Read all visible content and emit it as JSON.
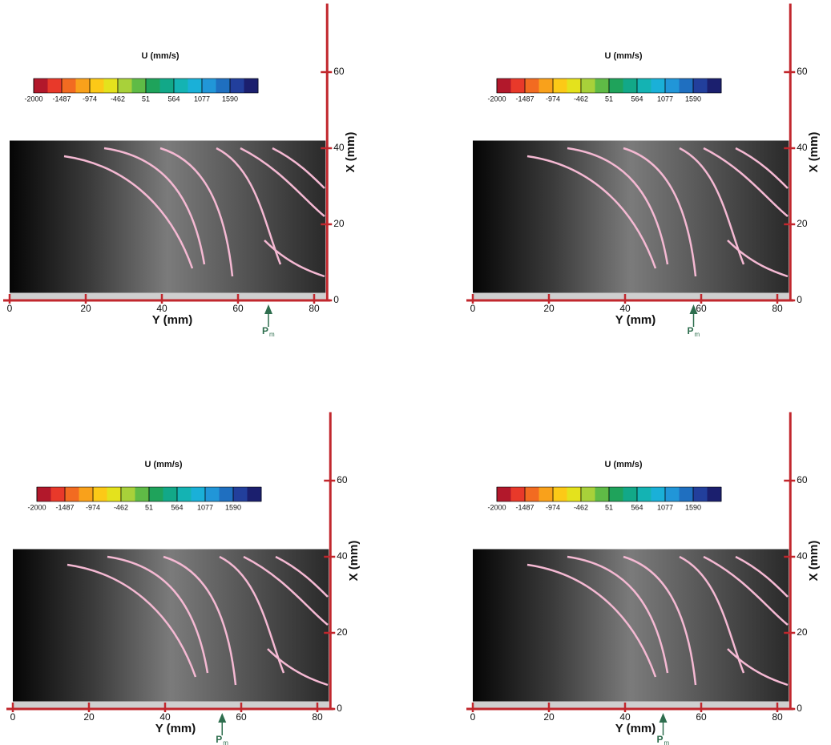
{
  "chart_data": [
    {
      "type": "field",
      "colorbar_title": "U (mm/s)",
      "colorbar_ticks": [
        -2000,
        -1487,
        -974,
        -462,
        51,
        564,
        1077,
        1590
      ],
      "clim": [
        -2000,
        2103
      ],
      "colormap": [
        "#b2182b",
        "#e8392a",
        "#f26b21",
        "#f9a11b",
        "#fcc917",
        "#e4e21d",
        "#a8d13a",
        "#5fbb46",
        "#1fa35b",
        "#12a888",
        "#14b3b3",
        "#1ab0d8",
        "#2196d8",
        "#1f6fc0",
        "#223f9c",
        "#1b1f6e"
      ],
      "xlabel": "Y (mm)",
      "ylabel": "X (mm)",
      "xlim": [
        0,
        83
      ],
      "xticks": [
        0,
        20,
        40,
        60,
        80
      ],
      "ylim": [
        0,
        78
      ],
      "yticks": [
        0,
        20,
        40,
        60
      ],
      "marker_label": "P",
      "marker_subscript": "m",
      "marker_x": 68
    },
    {
      "type": "field",
      "colorbar_title": "U (mm/s)",
      "colorbar_ticks": [
        -2000,
        -1487,
        -974,
        -462,
        51,
        564,
        1077,
        1590
      ],
      "clim": [
        -2000,
        2103
      ],
      "colormap": [
        "#b2182b",
        "#e8392a",
        "#f26b21",
        "#f9a11b",
        "#fcc917",
        "#e4e21d",
        "#a8d13a",
        "#5fbb46",
        "#1fa35b",
        "#12a888",
        "#14b3b3",
        "#1ab0d8",
        "#2196d8",
        "#1f6fc0",
        "#223f9c",
        "#1b1f6e"
      ],
      "xlabel": "Y (mm)",
      "ylabel": "X (mm)",
      "xlim": [
        0,
        83
      ],
      "xticks": [
        0,
        20,
        40,
        60,
        80
      ],
      "ylim": [
        0,
        78
      ],
      "yticks": [
        0,
        20,
        40,
        60
      ],
      "marker_label": "P",
      "marker_subscript": "m",
      "marker_x": 58
    },
    {
      "type": "field",
      "colorbar_title": "U (mm/s)",
      "colorbar_ticks": [
        -2000,
        -1487,
        -974,
        -462,
        51,
        564,
        1077,
        1590
      ],
      "clim": [
        -2000,
        2103
      ],
      "colormap": [
        "#b2182b",
        "#e8392a",
        "#f26b21",
        "#f9a11b",
        "#fcc917",
        "#e4e21d",
        "#a8d13a",
        "#5fbb46",
        "#1fa35b",
        "#12a888",
        "#14b3b3",
        "#1ab0d8",
        "#2196d8",
        "#1f6fc0",
        "#223f9c",
        "#1b1f6e"
      ],
      "xlabel": "Y (mm)",
      "ylabel": "X (mm)",
      "xlim": [
        0,
        83
      ],
      "xticks": [
        0,
        20,
        40,
        60,
        80
      ],
      "ylim": [
        0,
        78
      ],
      "yticks": [
        0,
        20,
        40,
        60
      ],
      "marker_label": "P",
      "marker_subscript": "m",
      "marker_x": 55
    },
    {
      "type": "field",
      "colorbar_title": "U (mm/s)",
      "colorbar_ticks": [
        -2000,
        -1487,
        -974,
        -462,
        51,
        564,
        1077,
        1590
      ],
      "clim": [
        -2000,
        2103
      ],
      "colormap": [
        "#b2182b",
        "#e8392a",
        "#f26b21",
        "#f9a11b",
        "#fcc917",
        "#e4e21d",
        "#a8d13a",
        "#5fbb46",
        "#1fa35b",
        "#12a888",
        "#14b3b3",
        "#1ab0d8",
        "#2196d8",
        "#1f6fc0",
        "#223f9c",
        "#1b1f6e"
      ],
      "xlabel": "Y (mm)",
      "ylabel": "X (mm)",
      "xlim": [
        0,
        83
      ],
      "xticks": [
        0,
        20,
        40,
        60,
        80
      ],
      "ylim": [
        0,
        78
      ],
      "yticks": [
        0,
        20,
        40,
        60
      ],
      "marker_label": "P",
      "marker_subscript": "m",
      "marker_x": 50
    }
  ]
}
